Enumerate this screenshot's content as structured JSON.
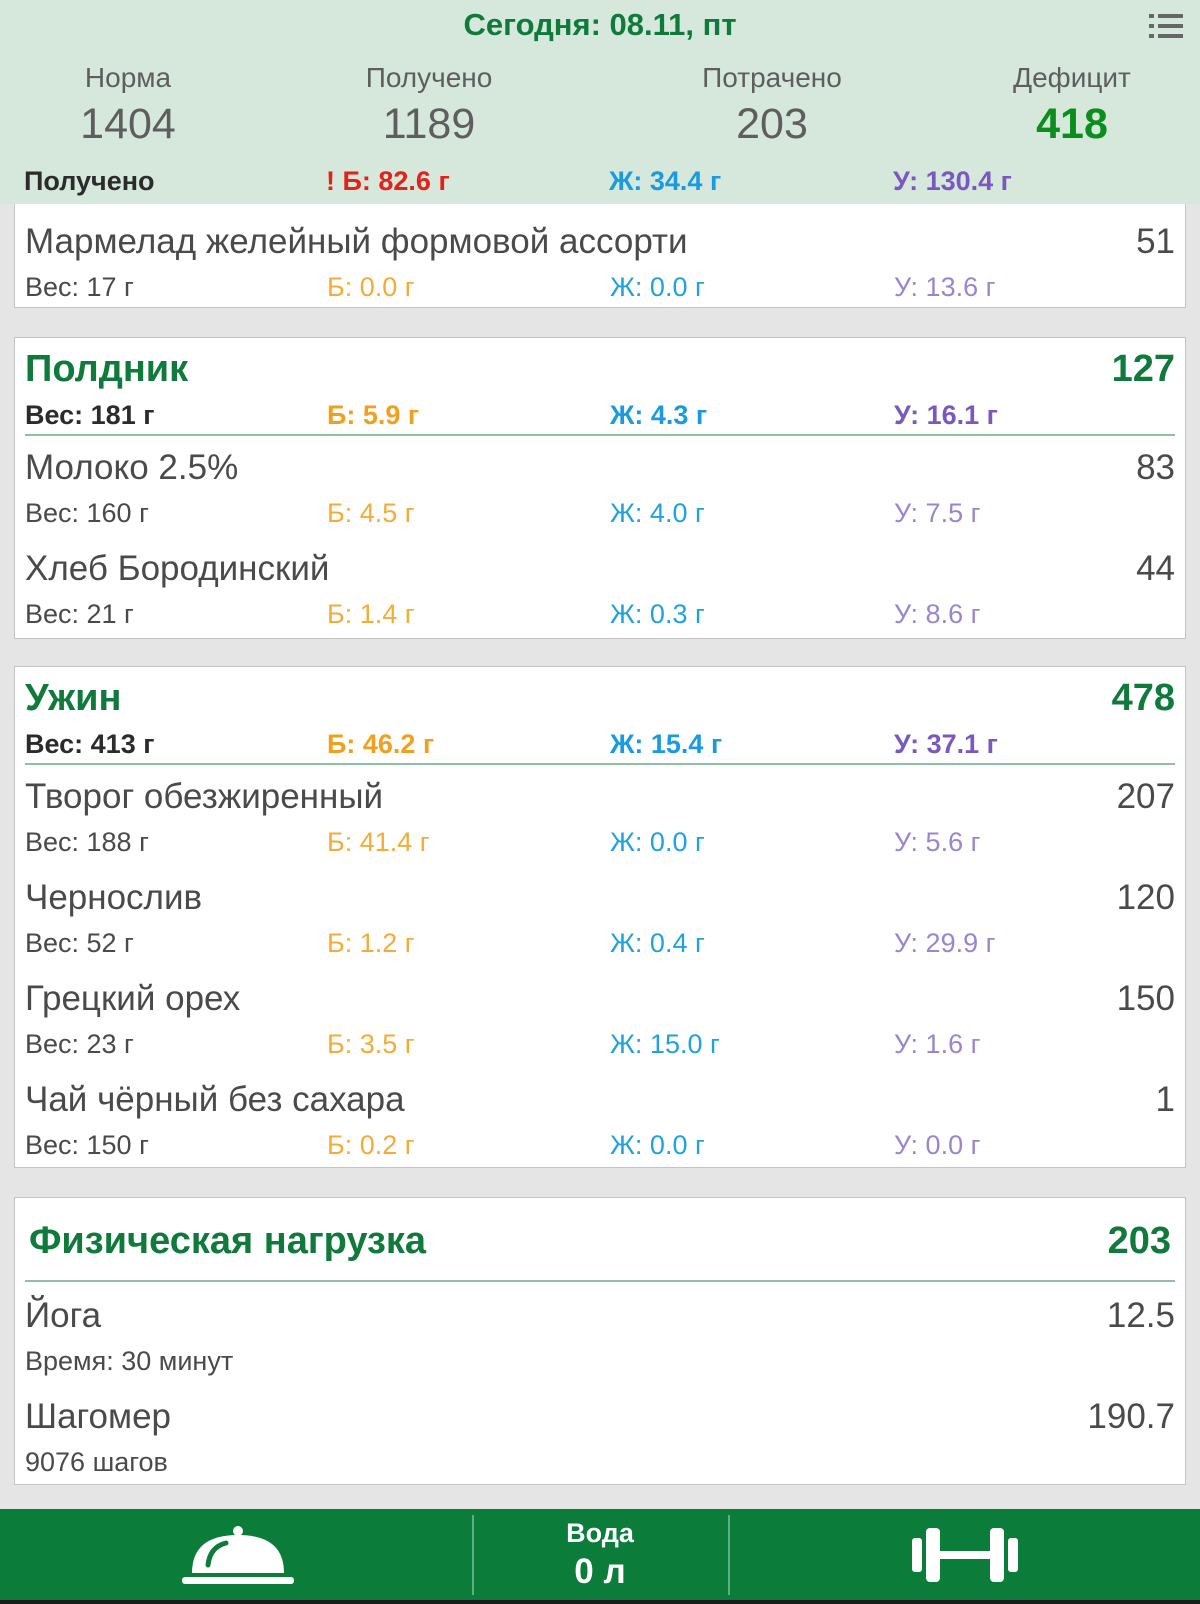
{
  "header": {
    "date_title": "Сегодня: 08.11, пт",
    "stats": [
      {
        "label": "Норма",
        "value": "1404"
      },
      {
        "label": "Получено",
        "value": "1189"
      },
      {
        "label": "Потрачено",
        "value": "203"
      },
      {
        "label": "Дефицит",
        "value": "418"
      }
    ],
    "macros": {
      "label": "Получено",
      "protein": "! Б: 82.6 г",
      "fat": "Ж: 34.4 г",
      "carbs": "У: 130.4 г"
    }
  },
  "top_item": {
    "name": "Мармелад желейный формовой ассорти",
    "kcal": "51",
    "weight": "Вес: 17 г",
    "protein": "Б: 0.0 г",
    "fat": "Ж: 0.0 г",
    "carbs": "У: 13.6 г"
  },
  "snack": {
    "title": "Полдник",
    "total": "127",
    "weight": "Вес: 181 г",
    "protein": "Б: 5.9 г",
    "fat": "Ж: 4.3 г",
    "carbs": "У: 16.1 г",
    "items": [
      {
        "name": "Молоко 2.5%",
        "kcal": "83",
        "weight": "Вес: 160 г",
        "protein": "Б: 4.5 г",
        "fat": "Ж: 4.0 г",
        "carbs": "У: 7.5 г"
      },
      {
        "name": "Хлеб Бородинский",
        "kcal": "44",
        "weight": "Вес: 21 г",
        "protein": "Б: 1.4 г",
        "fat": "Ж: 0.3 г",
        "carbs": "У: 8.6 г"
      }
    ]
  },
  "dinner": {
    "title": "Ужин",
    "total": "478",
    "weight": "Вес: 413 г",
    "protein": "Б: 46.2 г",
    "fat": "Ж: 15.4 г",
    "carbs": "У: 37.1 г",
    "items": [
      {
        "name": "Творог обезжиренный",
        "kcal": "207",
        "weight": "Вес: 188 г",
        "protein": "Б: 41.4 г",
        "fat": "Ж: 0.0 г",
        "carbs": "У: 5.6 г"
      },
      {
        "name": "Чернослив",
        "kcal": "120",
        "weight": "Вес: 52 г",
        "protein": "Б: 1.2 г",
        "fat": "Ж: 0.4 г",
        "carbs": "У: 29.9 г"
      },
      {
        "name": "Грецкий орех",
        "kcal": "150",
        "weight": "Вес: 23 г",
        "protein": "Б: 3.5 г",
        "fat": "Ж: 15.0 г",
        "carbs": "У: 1.6 г"
      },
      {
        "name": "Чай чёрный без сахара",
        "kcal": "1",
        "weight": "Вес: 150 г",
        "protein": "Б: 0.2 г",
        "fat": "Ж: 0.0 г",
        "carbs": "У: 0.0 г"
      }
    ]
  },
  "activity": {
    "title": "Физическая нагрузка",
    "total": "203",
    "items": [
      {
        "name": "Йога",
        "value": "12.5",
        "detail": "Время: 30 минут"
      },
      {
        "name": "Шагомер",
        "value": "190.7",
        "detail": "9076 шагов"
      }
    ]
  },
  "bottom_bar": {
    "food_icon": "cloche-icon",
    "water_label": "Вода",
    "water_value": "0 л",
    "activity_icon": "dumbbell-icon"
  },
  "colors": {
    "accent_green": "#0f7a3c",
    "deficit_green": "#0b8e1c",
    "protein": "#f0a01f",
    "fat": "#1a9be0",
    "carbs": "#7a58c2",
    "warning": "#e32119",
    "bar": "#0b7c3a"
  }
}
